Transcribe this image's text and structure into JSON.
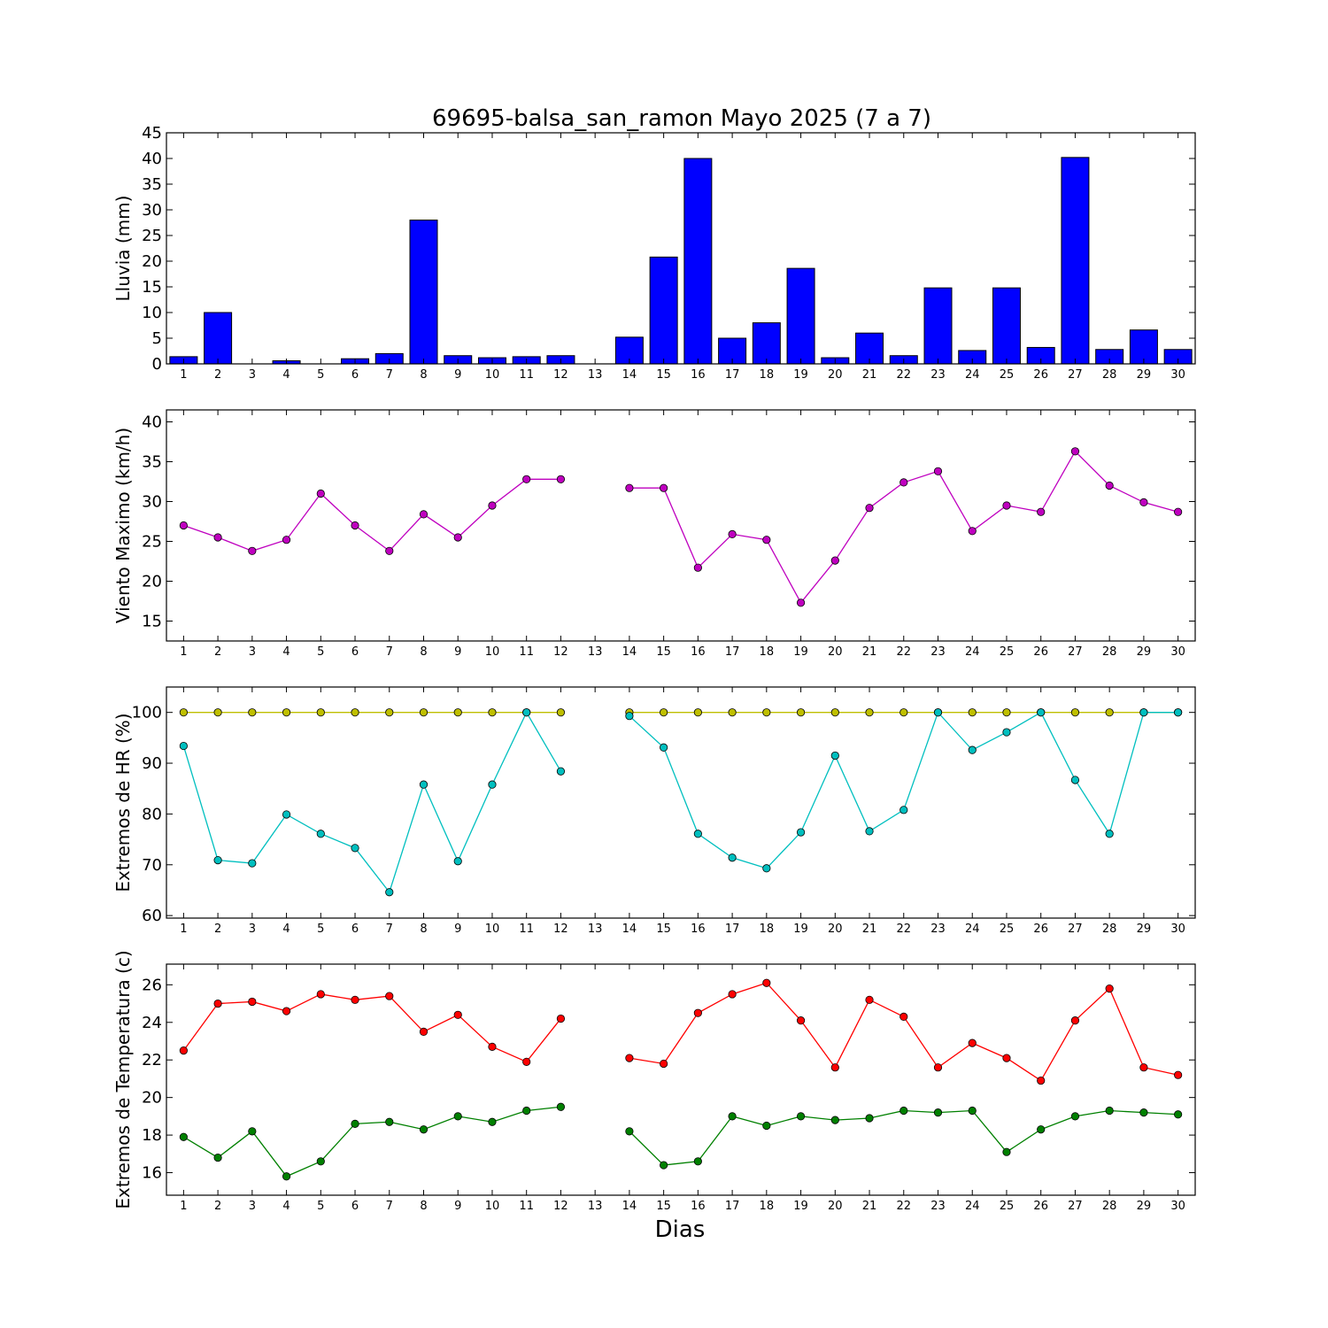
{
  "title": "69695-balsa_san_ramon Mayo 2025  (7 a 7)",
  "xlabel": "Dias",
  "days": [
    1,
    2,
    3,
    4,
    5,
    6,
    7,
    8,
    9,
    10,
    11,
    12,
    13,
    14,
    15,
    16,
    17,
    18,
    19,
    20,
    21,
    22,
    23,
    24,
    25,
    26,
    27,
    28,
    29,
    30
  ],
  "chart_data": [
    {
      "type": "bar",
      "ylabel": "Lluvia (mm)",
      "ylim": [
        0,
        45
      ],
      "yticks": [
        0,
        5,
        10,
        15,
        20,
        25,
        30,
        35,
        40,
        45
      ],
      "categories": [
        1,
        2,
        3,
        4,
        5,
        6,
        7,
        8,
        9,
        10,
        11,
        12,
        13,
        14,
        15,
        16,
        17,
        18,
        19,
        20,
        21,
        22,
        23,
        24,
        25,
        26,
        27,
        28,
        29,
        30
      ],
      "series": [
        {
          "values": [
            1.4,
            10.0,
            0,
            0.6,
            0,
            1.0,
            2.0,
            28.0,
            1.6,
            1.2,
            1.4,
            1.6,
            null,
            5.2,
            20.8,
            40.0,
            5.0,
            8.0,
            18.6,
            1.2,
            6.0,
            1.6,
            14.8,
            2.6,
            14.8,
            3.2,
            40.2,
            2.8,
            6.6,
            2.8
          ],
          "color": "#0000ff"
        }
      ]
    },
    {
      "type": "line",
      "ylabel": "Viento Maximo (km/h)",
      "ylim": [
        12.5,
        41.5
      ],
      "yticks": [
        15,
        20,
        25,
        30,
        35,
        40
      ],
      "x": [
        1,
        2,
        3,
        4,
        5,
        6,
        7,
        8,
        9,
        10,
        11,
        12,
        13,
        14,
        15,
        16,
        17,
        18,
        19,
        20,
        21,
        22,
        23,
        24,
        25,
        26,
        27,
        28,
        29,
        30
      ],
      "series": [
        {
          "values": [
            27.0,
            25.5,
            23.8,
            25.2,
            31.0,
            27.0,
            23.8,
            28.4,
            25.5,
            29.5,
            32.8,
            32.8,
            null,
            31.7,
            31.7,
            21.7,
            25.9,
            25.2,
            17.3,
            22.6,
            29.2,
            32.4,
            33.8,
            26.3,
            29.5,
            28.7,
            36.3,
            32.0,
            29.9,
            28.7
          ],
          "color": "#bf00bf"
        }
      ]
    },
    {
      "type": "line",
      "ylabel": "Extremos de HR (%)",
      "ylim": [
        59.5,
        105
      ],
      "yticks": [
        60,
        70,
        80,
        90,
        100
      ],
      "x": [
        1,
        2,
        3,
        4,
        5,
        6,
        7,
        8,
        9,
        10,
        11,
        12,
        13,
        14,
        15,
        16,
        17,
        18,
        19,
        20,
        21,
        22,
        23,
        24,
        25,
        26,
        27,
        28,
        29,
        30
      ],
      "series": [
        {
          "values": [
            100,
            100,
            100,
            100,
            100,
            100,
            100,
            100,
            100,
            100,
            100,
            100,
            null,
            100,
            100,
            100,
            100,
            100,
            100,
            100,
            100,
            100,
            100,
            100,
            100,
            100,
            100,
            100,
            100,
            100
          ],
          "color": "#bfbf00"
        },
        {
          "values": [
            93.4,
            70.9,
            70.3,
            79.9,
            76.1,
            73.3,
            64.6,
            85.8,
            70.7,
            85.8,
            100,
            88.4,
            null,
            99.3,
            93.1,
            76.1,
            71.4,
            69.3,
            76.4,
            91.5,
            76.6,
            80.8,
            100,
            92.6,
            96.1,
            100,
            86.7,
            76.1,
            100,
            100
          ],
          "color": "#00bfbf"
        }
      ]
    },
    {
      "type": "line",
      "ylabel": "Extremos de Temperatura (c)",
      "ylim": [
        14.8,
        27.1
      ],
      "yticks": [
        16,
        18,
        20,
        22,
        24,
        26
      ],
      "x": [
        1,
        2,
        3,
        4,
        5,
        6,
        7,
        8,
        9,
        10,
        11,
        12,
        13,
        14,
        15,
        16,
        17,
        18,
        19,
        20,
        21,
        22,
        23,
        24,
        25,
        26,
        27,
        28,
        29,
        30
      ],
      "series": [
        {
          "values": [
            22.5,
            25.0,
            25.1,
            24.6,
            25.5,
            25.2,
            25.4,
            23.5,
            24.4,
            22.7,
            21.9,
            24.2,
            null,
            22.1,
            21.8,
            24.5,
            25.5,
            26.1,
            24.1,
            21.6,
            25.2,
            24.3,
            21.6,
            22.9,
            22.1,
            20.9,
            24.1,
            25.8,
            21.6,
            21.2
          ],
          "color": "#ff0000"
        },
        {
          "values": [
            17.9,
            16.8,
            18.2,
            15.8,
            16.6,
            18.6,
            18.7,
            18.3,
            19.0,
            18.7,
            19.3,
            19.5,
            null,
            18.2,
            16.4,
            16.6,
            19.0,
            18.5,
            19.0,
            18.8,
            18.9,
            19.3,
            19.2,
            19.3,
            17.1,
            18.3,
            19.0,
            19.3,
            19.2,
            19.1
          ],
          "color": "#008000"
        }
      ]
    }
  ]
}
